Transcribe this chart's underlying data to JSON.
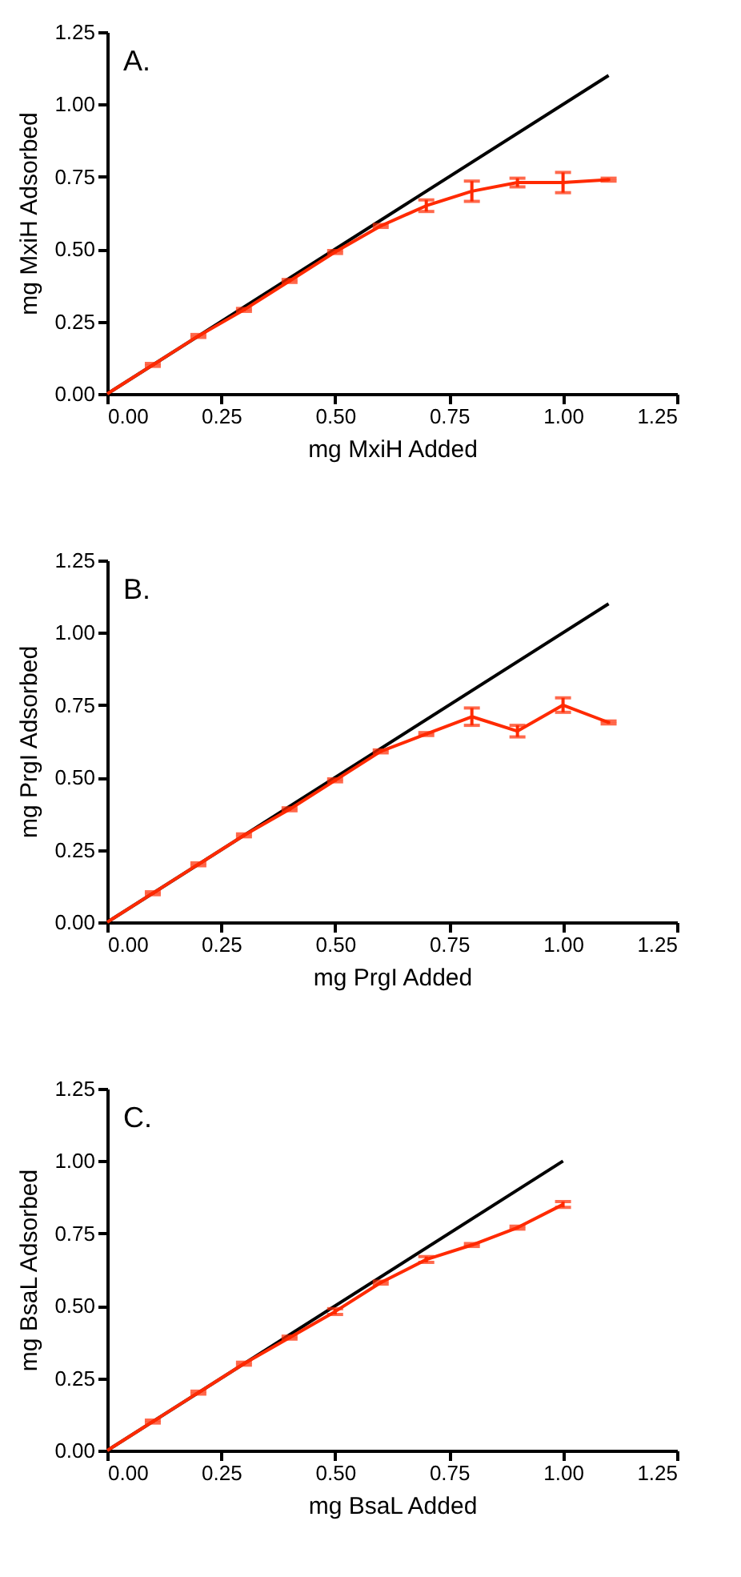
{
  "chart_data": [
    {
      "type": "line",
      "xlabel": "mg MxiH Added",
      "ylabel": "mg MxiH Adsorbed",
      "annotations": [
        "A."
      ],
      "marker": "none",
      "grid": false,
      "xlim": [
        0,
        1.25
      ],
      "ylim": [
        0,
        1.25
      ],
      "xticks": [
        {
          "value": 0,
          "label": "0.00"
        },
        {
          "value": 0.25,
          "label": "0.25"
        },
        {
          "value": 0.5,
          "label": "0.50"
        },
        {
          "value": 0.75,
          "label": "0.75"
        },
        {
          "value": 1,
          "label": "1.00"
        },
        {
          "value": 1.25,
          "label": "1.25"
        }
      ],
      "yticks": [
        {
          "value": 0,
          "label": "0.00"
        },
        {
          "value": 0.25,
          "label": "0.25"
        },
        {
          "value": 0.5,
          "label": "0.50"
        },
        {
          "value": 0.75,
          "label": "0.75"
        },
        {
          "value": 1,
          "label": "1.00"
        },
        {
          "value": 1.25,
          "label": "1.25"
        }
      ],
      "series": [
        {
          "color": "#000000",
          "x": [
            0,
            1.1
          ],
          "values": [
            0,
            1.1
          ]
        },
        {
          "color": "#ff2a00",
          "x": [
            0,
            0.1,
            0.2,
            0.3,
            0.4,
            0.5,
            0.6,
            0.7,
            0.8,
            0.9,
            1.0,
            1.1
          ],
          "values": [
            0,
            0.1,
            0.2,
            0.29,
            0.39,
            0.49,
            0.58,
            0.65,
            0.7,
            0.73,
            0.73,
            0.74
          ],
          "errors": [
            null,
            0.005,
            0.005,
            0.005,
            0.005,
            0.005,
            0.005,
            0.02,
            0.035,
            0.015,
            0.035,
            0.005
          ]
        }
      ]
    },
    {
      "type": "line",
      "xlabel": "mg PrgI Added",
      "ylabel": "mg PrgI Adsorbed",
      "annotations": [
        "B."
      ],
      "marker": "none",
      "grid": false,
      "xlim": [
        0,
        1.25
      ],
      "ylim": [
        0,
        1.25
      ],
      "xticks": [
        {
          "value": 0,
          "label": "0.00"
        },
        {
          "value": 0.25,
          "label": "0.25"
        },
        {
          "value": 0.5,
          "label": "0.50"
        },
        {
          "value": 0.75,
          "label": "0.75"
        },
        {
          "value": 1,
          "label": "1.00"
        },
        {
          "value": 1.25,
          "label": "1.25"
        }
      ],
      "yticks": [
        {
          "value": 0,
          "label": "0.00"
        },
        {
          "value": 0.25,
          "label": "0.25"
        },
        {
          "value": 0.5,
          "label": "0.50"
        },
        {
          "value": 0.75,
          "label": "0.75"
        },
        {
          "value": 1,
          "label": "1.00"
        },
        {
          "value": 1.25,
          "label": "1.25"
        }
      ],
      "series": [
        {
          "color": "#000000",
          "x": [
            0,
            1.1
          ],
          "values": [
            0,
            1.1
          ]
        },
        {
          "color": "#ff2a00",
          "x": [
            0,
            0.1,
            0.2,
            0.3,
            0.4,
            0.5,
            0.6,
            0.7,
            0.8,
            0.9,
            1.0,
            1.1
          ],
          "values": [
            0,
            0.1,
            0.2,
            0.3,
            0.39,
            0.49,
            0.59,
            0.65,
            0.71,
            0.66,
            0.75,
            0.69
          ],
          "errors": [
            null,
            0.005,
            0.005,
            0.005,
            0.005,
            0.005,
            0.005,
            0.005,
            0.03,
            0.02,
            0.025,
            0.005
          ]
        }
      ]
    },
    {
      "type": "line",
      "xlabel": "mg BsaL Added",
      "ylabel": "mg BsaL Adsorbed",
      "annotations": [
        "C."
      ],
      "marker": "none",
      "grid": false,
      "xlim": [
        0,
        1.25
      ],
      "ylim": [
        0,
        1.25
      ],
      "xticks": [
        {
          "value": 0,
          "label": "0.00"
        },
        {
          "value": 0.25,
          "label": "0.25"
        },
        {
          "value": 0.5,
          "label": "0.50"
        },
        {
          "value": 0.75,
          "label": "0.75"
        },
        {
          "value": 1,
          "label": "1.00"
        },
        {
          "value": 1.25,
          "label": "1.25"
        }
      ],
      "yticks": [
        {
          "value": 0,
          "label": "0.00"
        },
        {
          "value": 0.25,
          "label": "0.25"
        },
        {
          "value": 0.5,
          "label": "0.50"
        },
        {
          "value": 0.75,
          "label": "0.75"
        },
        {
          "value": 1,
          "label": "1.00"
        },
        {
          "value": 1.25,
          "label": "1.25"
        }
      ],
      "series": [
        {
          "color": "#000000",
          "x": [
            0,
            1.0
          ],
          "values": [
            0,
            1.0
          ]
        },
        {
          "color": "#ff2a00",
          "x": [
            0,
            0.1,
            0.2,
            0.3,
            0.4,
            0.5,
            0.6,
            0.7,
            0.8,
            0.9,
            1.0
          ],
          "values": [
            0,
            0.1,
            0.2,
            0.3,
            0.39,
            0.48,
            0.58,
            0.66,
            0.71,
            0.77,
            0.85
          ],
          "errors": [
            null,
            0.005,
            0.005,
            0.005,
            0.005,
            0.01,
            0.005,
            0.01,
            0.005,
            0.005,
            0.01
          ]
        }
      ]
    }
  ]
}
